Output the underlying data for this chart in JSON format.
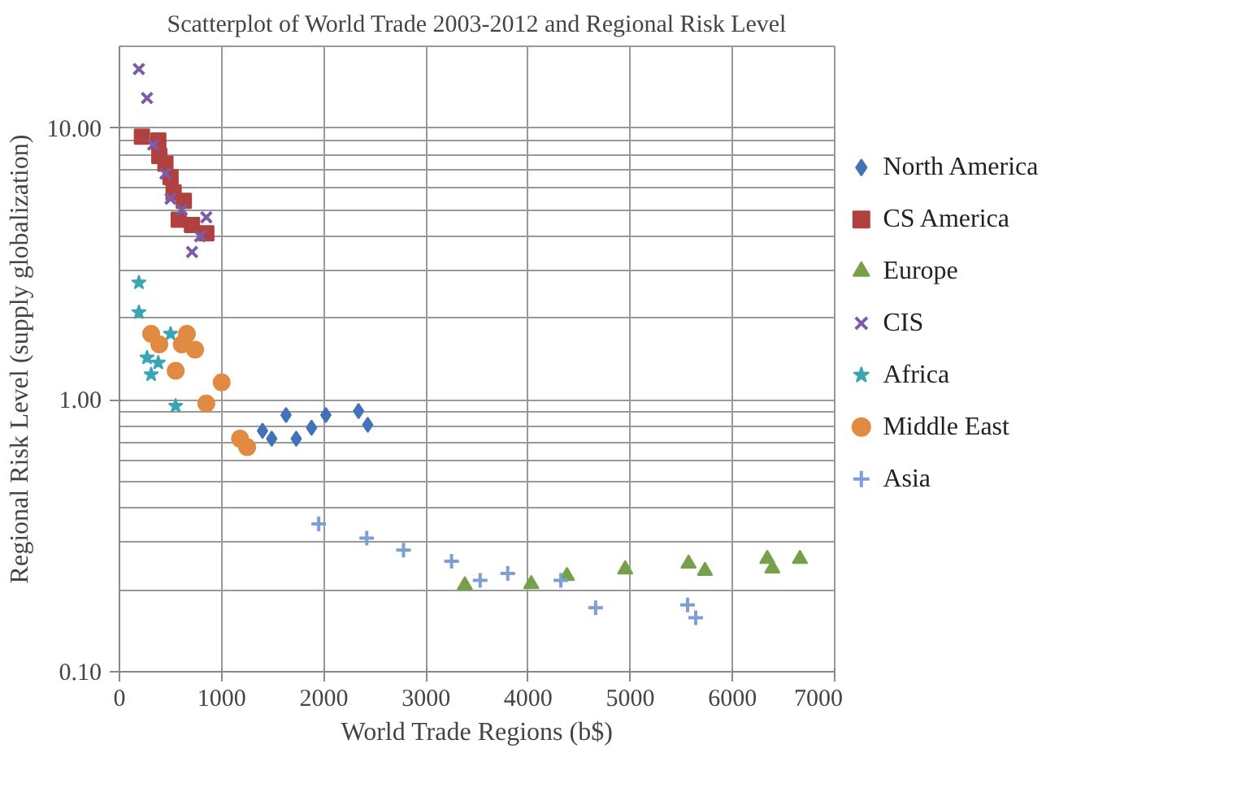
{
  "chart_data": {
    "type": "scatter",
    "title": "Scatterplot of World Trade 2003-2012 and Regional Risk Level",
    "xlabel": "World Trade Regions (b$)",
    "ylabel": "Regional Risk Level (supply globalization)",
    "log": "y",
    "grid": true,
    "legend": "right",
    "xlim": [
      0,
      7000
    ],
    "xticks": [
      0,
      1000,
      2000,
      3000,
      4000,
      5000,
      6000,
      7000
    ],
    "ylim": [
      0.1,
      20
    ],
    "yticks": [
      {
        "value": 0.1,
        "label": "0.10"
      },
      {
        "value": 1,
        "label": "1.00"
      },
      {
        "value": 10,
        "label": "10.00"
      }
    ],
    "series": [
      {
        "name": "North America",
        "color": "#4272b8",
        "marker": "diamond",
        "x": [
          1400,
          1490,
          1630,
          1730,
          1880,
          2020,
          2340,
          2430
        ],
        "values": [
          0.77,
          0.72,
          0.88,
          0.72,
          0.79,
          0.88,
          0.91,
          0.81
        ]
      },
      {
        "name": "CS America",
        "color": "#b0413e",
        "marker": "square",
        "x": [
          220,
          380,
          390,
          450,
          500,
          530,
          630,
          580,
          710,
          850
        ],
        "values": [
          9.3,
          9.0,
          7.9,
          7.4,
          6.6,
          5.8,
          5.4,
          4.6,
          4.4,
          4.1
        ]
      },
      {
        "name": "Europe",
        "color": "#77a04a",
        "marker": "triangle",
        "x": [
          3380,
          4030,
          4380,
          4950,
          5570,
          5730,
          6340,
          6390,
          6660
        ],
        "values": [
          0.208,
          0.21,
          0.225,
          0.238,
          0.25,
          0.235,
          0.26,
          0.24,
          0.26
        ]
      },
      {
        "name": "CIS",
        "color": "#7b5ca8",
        "marker": "x",
        "x": [
          190,
          270,
          330,
          450,
          500,
          610,
          850,
          790,
          710
        ],
        "values": [
          16.5,
          12.9,
          8.7,
          6.8,
          5.5,
          5.0,
          4.7,
          4.0,
          3.5
        ]
      },
      {
        "name": "Africa",
        "color": "#3aa6b5",
        "marker": "star",
        "x": [
          190,
          190,
          270,
          310,
          380,
          500,
          550
        ],
        "values": [
          2.7,
          2.1,
          1.43,
          1.24,
          1.37,
          1.75,
          0.95
        ]
      },
      {
        "name": "Middle East",
        "color": "#e08a42",
        "marker": "circle",
        "x": [
          310,
          390,
          660,
          740,
          550,
          610,
          1000,
          850,
          1180,
          1250
        ],
        "values": [
          1.75,
          1.6,
          1.75,
          1.53,
          1.28,
          1.6,
          1.16,
          0.97,
          0.72,
          0.67
        ]
      },
      {
        "name": "Asia",
        "color": "#7e9fd4",
        "marker": "cross",
        "x": [
          1950,
          2420,
          2780,
          3250,
          3530,
          3800,
          4320,
          4660,
          5560,
          5640
        ],
        "values": [
          0.35,
          0.31,
          0.28,
          0.255,
          0.217,
          0.23,
          0.217,
          0.172,
          0.176,
          0.158
        ]
      }
    ]
  }
}
